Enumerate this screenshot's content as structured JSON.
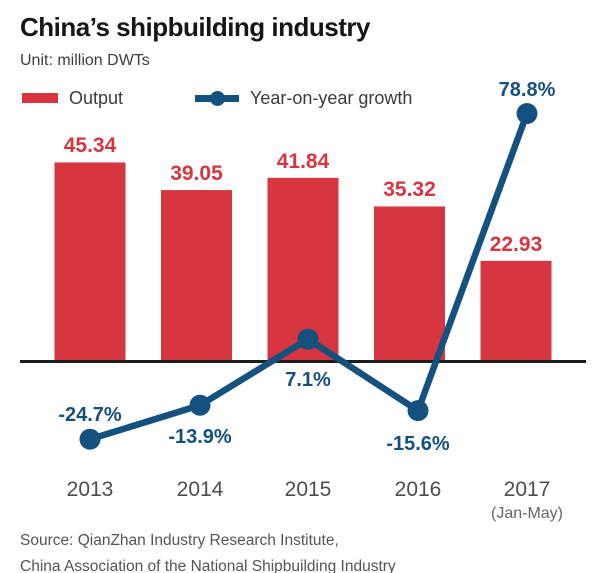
{
  "header": {
    "title": "China’s shipbuilding industry",
    "unit": "Unit: million DWTs"
  },
  "legend": [
    {
      "label": "Output",
      "swatch": "bar-swatch",
      "color": "#D6363F"
    },
    {
      "label": "Year-on-year growth",
      "swatch": "line-dot-swatch",
      "color": "#14517E"
    }
  ],
  "chart_data": {
    "type": "bar",
    "title": "China’s shipbuilding industry",
    "ylabel": "million DWTs",
    "categories": [
      "2013",
      "2014",
      "2015",
      "2016",
      "2017"
    ],
    "category_sublabels": [
      "",
      "",
      "",
      "",
      "(Jan-May)"
    ],
    "series": [
      {
        "name": "Output",
        "type": "bar",
        "color": "#D6363F",
        "values": [
          45.34,
          39.05,
          41.84,
          35.32,
          22.93
        ],
        "value_labels": [
          "45.34",
          "39.05",
          "41.84",
          "35.32",
          "22.93"
        ]
      },
      {
        "name": "Year-on-year growth",
        "type": "line",
        "color": "#14517E",
        "values": [
          -24.7,
          -13.9,
          7.1,
          -15.6,
          78.8
        ],
        "value_labels": [
          "-24.7%",
          "-13.9%",
          "7.1%",
          "-15.6%",
          "78.8%"
        ]
      }
    ],
    "grid": false,
    "legend_position": "top-left",
    "baseline_axis": 0
  },
  "source": {
    "line1": "Source: QianZhan Industry Research Institute,",
    "line2": "China Association of the National Shipbuilding Industry"
  },
  "colors": {
    "bar": "#D6363F",
    "line": "#14517E",
    "axis": "#1c1c1c",
    "title": "#161616",
    "year": "#4d4d4d",
    "source": "#555555"
  }
}
